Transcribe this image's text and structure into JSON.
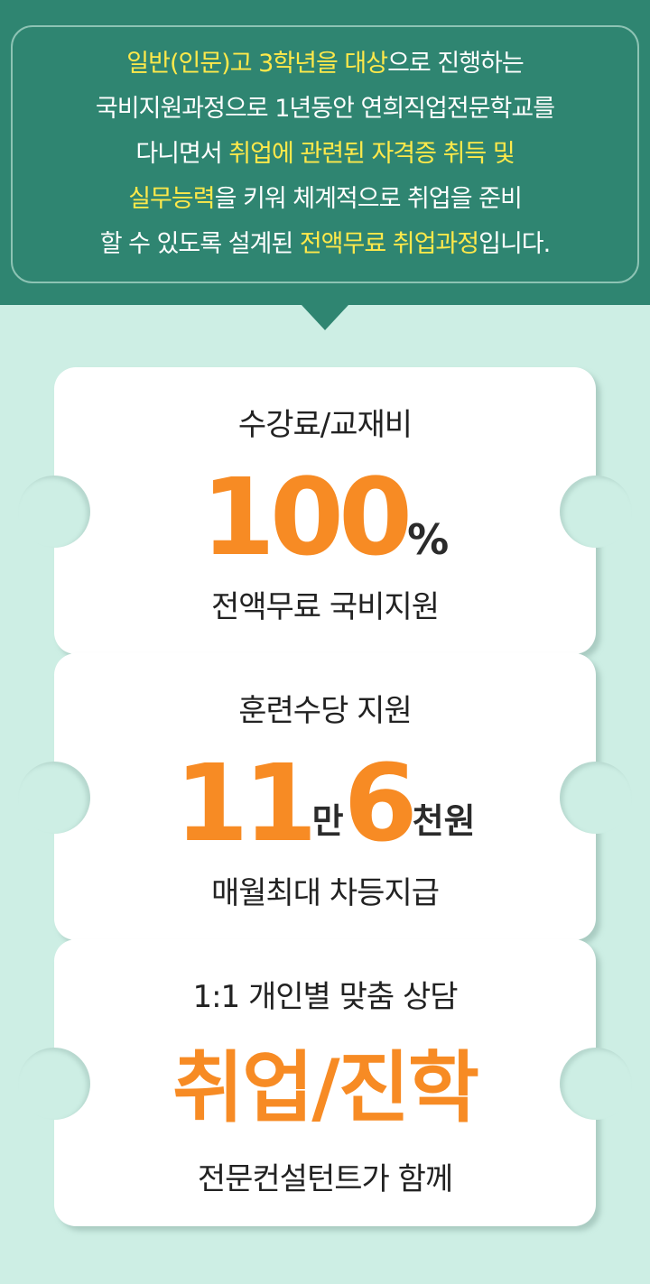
{
  "header": {
    "lines": [
      [
        {
          "t": "일반(인문)고 3학년을 대상",
          "hl": true
        },
        {
          "t": "으로 진행하는",
          "hl": false
        }
      ],
      [
        {
          "t": "국비지원과정으로 1년동안  연희직업전문학교를",
          "hl": false
        }
      ],
      [
        {
          "t": "다니면서 ",
          "hl": false
        },
        {
          "t": "취업에 관련된 자격증 취득 및",
          "hl": true
        }
      ],
      [
        {
          "t": "실무능력",
          "hl": true
        },
        {
          "t": "을 키워 체계적으로 취업을 준비",
          "hl": false
        }
      ],
      [
        {
          "t": "할 수 있도록 설계된 ",
          "hl": false
        },
        {
          "t": "전액무료 취업과정",
          "hl": true
        },
        {
          "t": "입니다.",
          "hl": false
        }
      ]
    ]
  },
  "cards": [
    {
      "title": "수강료/교재비",
      "value": "100",
      "unit": "%",
      "footer": "전액무료 국비지원"
    },
    {
      "title": "훈련수당 지원",
      "value_a": "11",
      "unit_a": "만",
      "value_b": "6",
      "unit_b": "천원",
      "footer": "매월최대 차등지급"
    },
    {
      "title": "1:1 개인별 맞춤 상담",
      "value": "취업/진학",
      "footer": "전문컨설턴트가 함께"
    }
  ],
  "colors": {
    "header_bg": "#2f8571",
    "highlight": "#ffe94a",
    "accent": "#f78b24",
    "page_bg": "#cdeee4"
  }
}
